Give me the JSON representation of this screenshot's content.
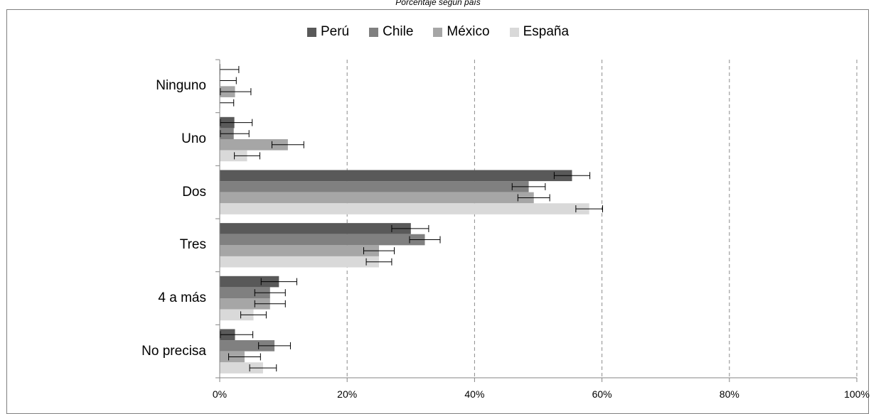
{
  "chart_data": {
    "type": "bar",
    "orientation": "horizontal",
    "subtitle": "Porcentaje según país",
    "categories": [
      "Ninguno",
      "Uno",
      "Dos",
      "Tres",
      "4 a más",
      "No precisa"
    ],
    "series": [
      {
        "name": "Perú",
        "color": "#595959",
        "values": [
          0.1,
          2.3,
          55.3,
          30.0,
          9.3,
          2.4
        ],
        "errors": [
          [
            0,
            3.0
          ],
          [
            0.1,
            5.1
          ],
          [
            52.5,
            58.1
          ],
          [
            27.0,
            32.8
          ],
          [
            6.5,
            12.1
          ],
          [
            0.1,
            5.2
          ]
        ]
      },
      {
        "name": "Chile",
        "color": "#808080",
        "values": [
          0.1,
          2.2,
          48.5,
          32.2,
          7.9,
          8.6
        ],
        "errors": [
          [
            0,
            2.6
          ],
          [
            0.1,
            4.6
          ],
          [
            45.9,
            51.1
          ],
          [
            29.8,
            34.6
          ],
          [
            5.5,
            10.3
          ],
          [
            6.1,
            11.1
          ]
        ]
      },
      {
        "name": "México",
        "color": "#a6a6a6",
        "values": [
          2.4,
          10.7,
          49.3,
          25.0,
          7.9,
          3.9
        ],
        "errors": [
          [
            0.1,
            4.9
          ],
          [
            8.2,
            13.2
          ],
          [
            46.8,
            51.8
          ],
          [
            22.6,
            27.4
          ],
          [
            5.5,
            10.3
          ],
          [
            1.4,
            6.4
          ]
        ]
      },
      {
        "name": "España",
        "color": "#d9d9d9",
        "values": [
          0.1,
          4.3,
          58.0,
          25.0,
          5.3,
          6.8
        ],
        "errors": [
          [
            0,
            2.2
          ],
          [
            2.3,
            6.3
          ],
          [
            55.9,
            60.1
          ],
          [
            23.0,
            27.0
          ],
          [
            3.3,
            7.3
          ],
          [
            4.7,
            8.9
          ]
        ]
      }
    ],
    "x_ticks": [
      "0%",
      "20%",
      "40%",
      "60%",
      "80%",
      "100%"
    ],
    "xlim": [
      0,
      100
    ],
    "grid": "vertical dashed",
    "legend_position": "top"
  }
}
